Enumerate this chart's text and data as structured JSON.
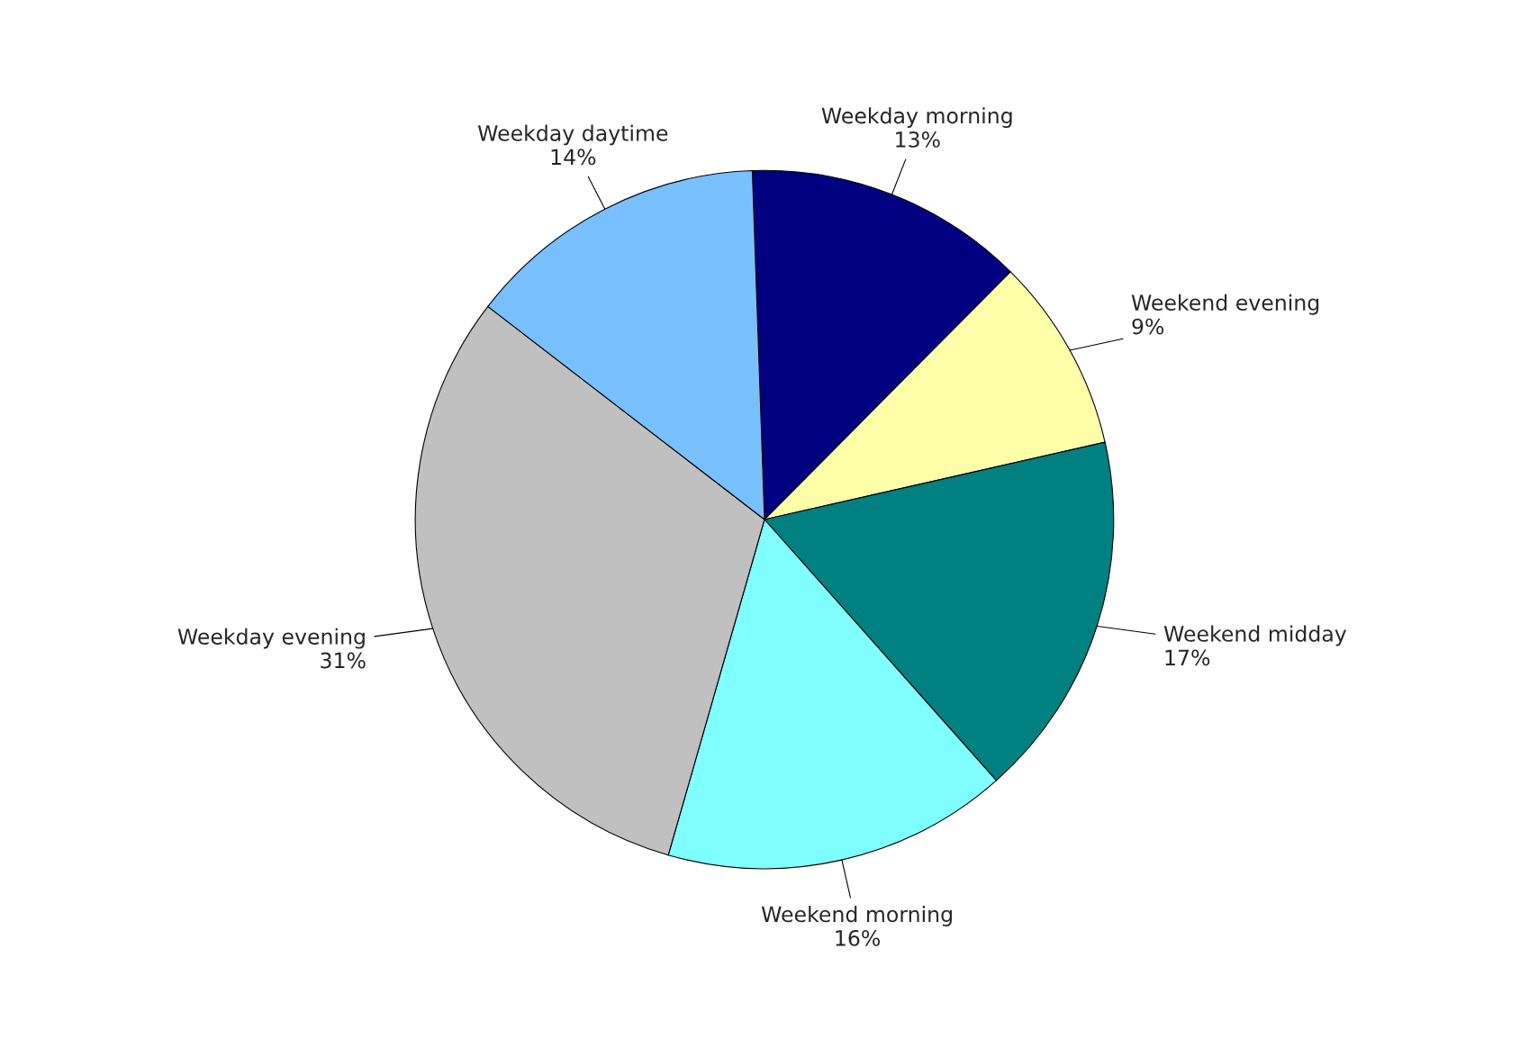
{
  "chart_data": {
    "type": "pie",
    "categories": [
      "Weekday morning",
      "Weekend evening",
      "Weekend midday",
      "Weekend morning",
      "Weekday evening",
      "Weekday daytime"
    ],
    "values": [
      13,
      9,
      17,
      16,
      31,
      14
    ],
    "value_labels": [
      "13%",
      "9%",
      "17%",
      "16%",
      "31%",
      "14%"
    ],
    "colors": [
      "#000080",
      "#ffffaa",
      "#008080",
      "#80ffff",
      "#c0c0c0",
      "#78c0ff"
    ],
    "legend": false
  }
}
